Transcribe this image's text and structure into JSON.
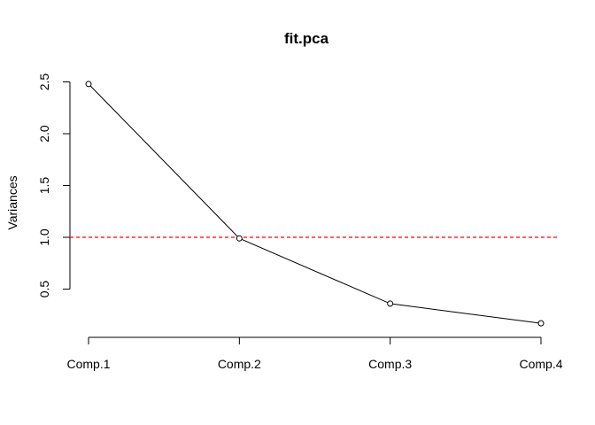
{
  "chart_data": {
    "type": "line",
    "title": "fit.pca",
    "xlabel": "",
    "ylabel": "Variances",
    "categories": [
      "Comp.1",
      "Comp.2",
      "Comp.3",
      "Comp.4"
    ],
    "series": [
      {
        "values": [
          2.48,
          0.99,
          0.36,
          0.17
        ],
        "color": "#000000",
        "marker": "open-circle"
      }
    ],
    "reference_line": {
      "y": 1.0,
      "color": "#ff0000",
      "style": "dashed"
    },
    "yticks": [
      "0.5",
      "1.0",
      "1.5",
      "2.0",
      "2.5"
    ],
    "ylim": [
      0.12,
      2.53
    ],
    "grid": false,
    "legend": "none"
  }
}
